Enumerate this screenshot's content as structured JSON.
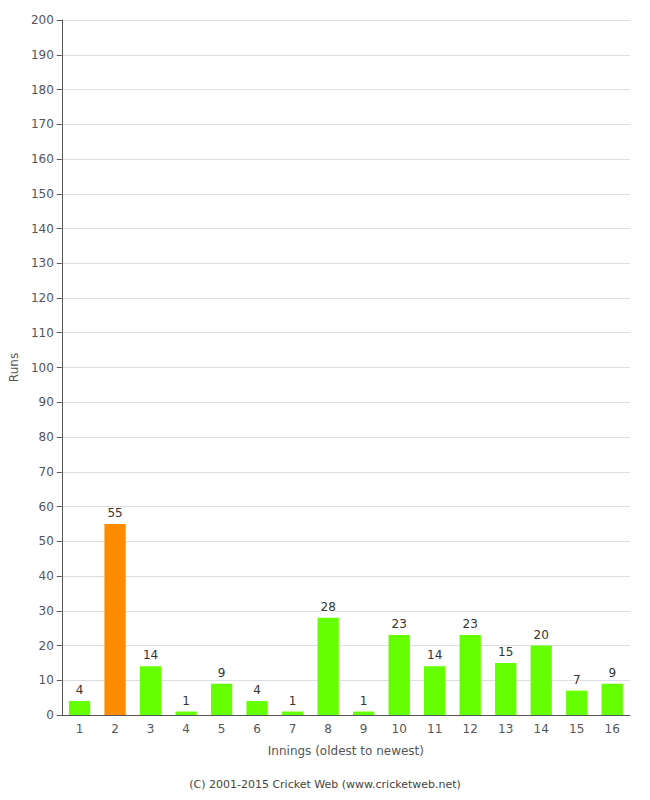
{
  "chart_data": {
    "type": "bar",
    "categories": [
      "1",
      "2",
      "3",
      "4",
      "5",
      "6",
      "7",
      "8",
      "9",
      "10",
      "11",
      "12",
      "13",
      "14",
      "15",
      "16"
    ],
    "values": [
      4,
      55,
      14,
      1,
      9,
      4,
      1,
      28,
      1,
      23,
      14,
      23,
      15,
      20,
      7,
      9
    ],
    "colors": [
      "#66ff00",
      "#ff8c00",
      "#66ff00",
      "#66ff00",
      "#66ff00",
      "#66ff00",
      "#66ff00",
      "#66ff00",
      "#66ff00",
      "#66ff00",
      "#66ff00",
      "#66ff00",
      "#66ff00",
      "#66ff00",
      "#66ff00",
      "#66ff00"
    ],
    "xlabel": "Innings (oldest to newest)",
    "ylabel": "Runs",
    "ylim": [
      0,
      200
    ],
    "yticks": [
      0,
      10,
      20,
      30,
      40,
      50,
      60,
      70,
      80,
      90,
      100,
      110,
      120,
      130,
      140,
      150,
      160,
      170,
      180,
      190,
      200
    ],
    "grid": true,
    "data_labels": true,
    "footer": "(C) 2001-2015 Cricket Web (www.cricketweb.net)"
  }
}
